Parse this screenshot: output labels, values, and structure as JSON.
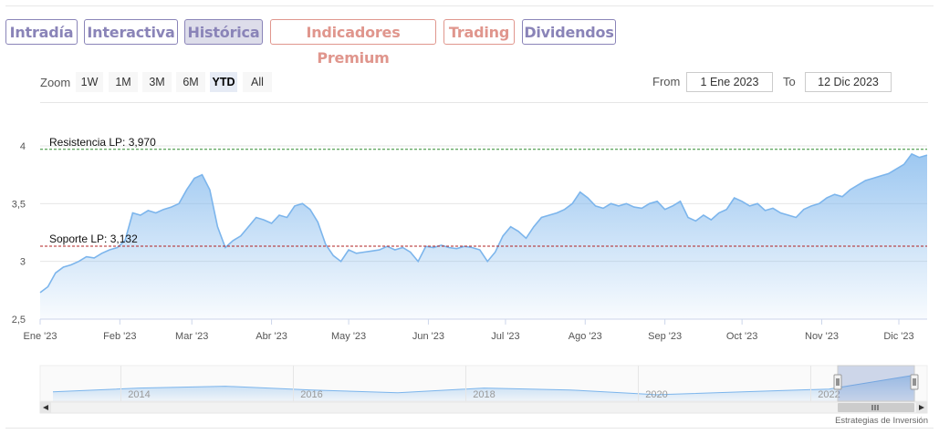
{
  "tabs": [
    {
      "label": "Intradía",
      "style": "purple",
      "active": false
    },
    {
      "label": "Interactiva",
      "style": "purple",
      "active": false
    },
    {
      "label": "Histórica",
      "style": "purple",
      "active": true
    },
    {
      "label": "Indicadores Premium",
      "style": "salmon",
      "active": false
    },
    {
      "label": "Trading",
      "style": "salmon",
      "active": false
    },
    {
      "label": "Dividendos",
      "style": "purple",
      "active": false
    }
  ],
  "zoom": {
    "label": "Zoom",
    "buttons": [
      "1W",
      "1M",
      "3M",
      "6M",
      "YTD",
      "All"
    ],
    "selected": "YTD"
  },
  "range": {
    "from_label": "From",
    "from_value": "1 Ene 2023",
    "to_label": "To",
    "to_value": "12 Dic 2023"
  },
  "credit": "Estrategias de Inversión",
  "colors": {
    "line": "#7cb5ec",
    "fill_top": "#7cb5ec",
    "resistance": "#2e8b2e",
    "support": "#b22222",
    "tab_purple": "#8a84b8",
    "tab_salmon": "#e0968d"
  },
  "chart_data": [
    {
      "type": "area",
      "title": "",
      "x": [
        "2023-01-01",
        "2023-01-04",
        "2023-01-07",
        "2023-01-10",
        "2023-01-13",
        "2023-01-16",
        "2023-01-19",
        "2023-01-22",
        "2023-01-25",
        "2023-01-28",
        "2023-01-31",
        "2023-02-03",
        "2023-02-06",
        "2023-02-09",
        "2023-02-12",
        "2023-02-15",
        "2023-02-18",
        "2023-02-21",
        "2023-02-24",
        "2023-02-27",
        "2023-03-02",
        "2023-03-05",
        "2023-03-08",
        "2023-03-11",
        "2023-03-14",
        "2023-03-17",
        "2023-03-20",
        "2023-03-23",
        "2023-03-26",
        "2023-03-29",
        "2023-04-01",
        "2023-04-04",
        "2023-04-07",
        "2023-04-10",
        "2023-04-13",
        "2023-04-16",
        "2023-04-19",
        "2023-04-22",
        "2023-04-25",
        "2023-04-28",
        "2023-05-01",
        "2023-05-04",
        "2023-05-07",
        "2023-05-10",
        "2023-05-13",
        "2023-05-16",
        "2023-05-19",
        "2023-05-22",
        "2023-05-25",
        "2023-05-28",
        "2023-05-31",
        "2023-06-03",
        "2023-06-06",
        "2023-06-09",
        "2023-06-12",
        "2023-06-15",
        "2023-06-18",
        "2023-06-21",
        "2023-06-24",
        "2023-06-27",
        "2023-06-30",
        "2023-07-03",
        "2023-07-06",
        "2023-07-09",
        "2023-07-12",
        "2023-07-15",
        "2023-07-18",
        "2023-07-21",
        "2023-07-24",
        "2023-07-27",
        "2023-07-30",
        "2023-08-02",
        "2023-08-05",
        "2023-08-08",
        "2023-08-11",
        "2023-08-14",
        "2023-08-17",
        "2023-08-20",
        "2023-08-23",
        "2023-08-26",
        "2023-08-29",
        "2023-09-01",
        "2023-09-04",
        "2023-09-07",
        "2023-09-10",
        "2023-09-13",
        "2023-09-16",
        "2023-09-19",
        "2023-09-22",
        "2023-09-25",
        "2023-09-28",
        "2023-10-01",
        "2023-10-04",
        "2023-10-07",
        "2023-10-10",
        "2023-10-13",
        "2023-10-16",
        "2023-10-19",
        "2023-10-22",
        "2023-10-25",
        "2023-10-28",
        "2023-10-31",
        "2023-11-03",
        "2023-11-06",
        "2023-11-09",
        "2023-11-12",
        "2023-11-15",
        "2023-11-18",
        "2023-11-21",
        "2023-11-24",
        "2023-11-27",
        "2023-11-30",
        "2023-12-03",
        "2023-12-06",
        "2023-12-09",
        "2023-12-12"
      ],
      "series": [
        {
          "values": [
            2.73,
            2.78,
            2.9,
            2.95,
            2.97,
            3.0,
            3.04,
            3.03,
            3.07,
            3.1,
            3.12,
            3.18,
            3.42,
            3.4,
            3.44,
            3.42,
            3.45,
            3.47,
            3.5,
            3.62,
            3.72,
            3.75,
            3.62,
            3.3,
            3.12,
            3.18,
            3.22,
            3.3,
            3.38,
            3.36,
            3.33,
            3.4,
            3.38,
            3.48,
            3.5,
            3.45,
            3.34,
            3.15,
            3.05,
            3.0,
            3.1,
            3.07,
            3.08,
            3.09,
            3.1,
            3.13,
            3.1,
            3.12,
            3.08,
            3.0,
            3.13,
            3.12,
            3.14,
            3.12,
            3.11,
            3.13,
            3.12,
            3.1,
            3.0,
            3.08,
            3.22,
            3.3,
            3.26,
            3.2,
            3.3,
            3.38,
            3.4,
            3.42,
            3.45,
            3.5,
            3.6,
            3.55,
            3.48,
            3.46,
            3.5,
            3.48,
            3.5,
            3.47,
            3.46,
            3.5,
            3.52,
            3.45,
            3.48,
            3.52,
            3.38,
            3.35,
            3.4,
            3.36,
            3.42,
            3.45,
            3.55,
            3.52,
            3.48,
            3.5,
            3.44,
            3.46,
            3.42,
            3.4,
            3.38,
            3.45,
            3.48,
            3.5,
            3.55,
            3.58,
            3.56,
            3.62,
            3.66,
            3.7,
            3.72,
            3.74,
            3.76,
            3.8,
            3.84,
            3.93,
            3.9,
            3.92
          ]
        }
      ],
      "ylim": [
        2.5,
        4.0
      ],
      "yticks": [
        "2,5",
        "3",
        "3,5",
        "4"
      ],
      "xticks": [
        {
          "date": "2023-01-01",
          "label": "Ene '23"
        },
        {
          "date": "2023-02-01",
          "label": "Feb '23"
        },
        {
          "date": "2023-03-01",
          "label": "Mar '23"
        },
        {
          "date": "2023-04-01",
          "label": "Abr '23"
        },
        {
          "date": "2023-05-01",
          "label": "May '23"
        },
        {
          "date": "2023-06-01",
          "label": "Jun '23"
        },
        {
          "date": "2023-07-01",
          "label": "Jul '23"
        },
        {
          "date": "2023-08-01",
          "label": "Ago '23"
        },
        {
          "date": "2023-09-01",
          "label": "Sep '23"
        },
        {
          "date": "2023-10-01",
          "label": "Oct '23"
        },
        {
          "date": "2023-11-01",
          "label": "Nov '23"
        },
        {
          "date": "2023-12-01",
          "label": "Dic '23"
        }
      ],
      "annotations": [
        {
          "label": "Resistencia LP: 3,970",
          "value": 3.97,
          "kind": "resistance"
        },
        {
          "label": "Soporte LP: 3,132",
          "value": 3.132,
          "kind": "support"
        }
      ],
      "grid": true,
      "legend": "none"
    },
    {
      "type": "area",
      "title": "",
      "x_years": [
        2013,
        2014,
        2015,
        2016,
        2017,
        2018,
        2019,
        2020,
        2021,
        2022,
        2023
      ],
      "values": [
        2.9,
        3.1,
        3.2,
        3.0,
        2.85,
        3.1,
        3.0,
        2.75,
        2.9,
        3.05,
        3.8
      ],
      "xticks": [
        "2014",
        "2016",
        "2018",
        "2020",
        "2022"
      ],
      "selected_range": [
        "2023-01-01",
        "2023-12-12"
      ]
    }
  ]
}
